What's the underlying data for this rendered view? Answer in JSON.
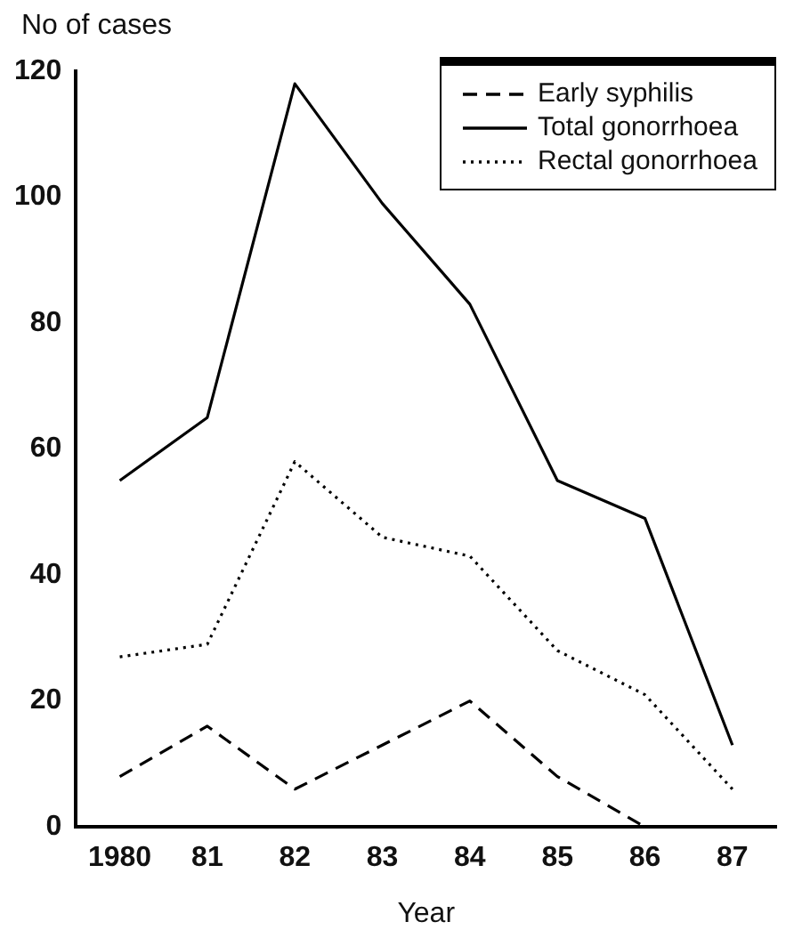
{
  "chart_data": {
    "type": "line",
    "ylabel": "No of cases",
    "xlabel": "Year",
    "categories": [
      "1980",
      "81",
      "82",
      "83",
      "84",
      "85",
      "86",
      "87"
    ],
    "ylim": [
      0,
      120
    ],
    "yticks": [
      0,
      20,
      40,
      60,
      80,
      100,
      120
    ],
    "grid": false,
    "legend": "top right",
    "marker": "none",
    "series": [
      {
        "name": "Early syphilis",
        "color": "#000000",
        "line_style": "dashed",
        "values": [
          8,
          16,
          6,
          13,
          20,
          8,
          0,
          0
        ]
      },
      {
        "name": "Total gonorrhoea",
        "color": "#000000",
        "line_style": "solid",
        "values": [
          55,
          65,
          118,
          99,
          83,
          55,
          49,
          13
        ]
      },
      {
        "name": "Rectal gonorrhoea",
        "color": "#000000",
        "line_style": "dotted",
        "values": [
          27,
          29,
          58,
          46,
          43,
          28,
          21,
          6
        ]
      }
    ]
  }
}
